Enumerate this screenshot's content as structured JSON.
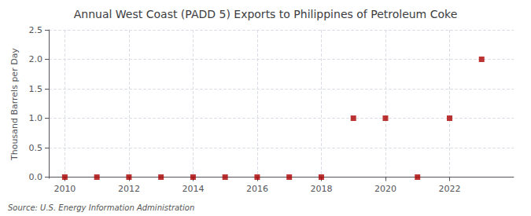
{
  "chart_data": {
    "type": "scatter",
    "title": "Annual West Coast (PADD 5) Exports to Philippines of Petroleum Coke",
    "ylabel": "Thousand Barrels per Day",
    "annotation": "Source: U.S. Energy Information Administration",
    "x": [
      2010,
      2011,
      2012,
      2013,
      2014,
      2015,
      2016,
      2017,
      2018,
      2019,
      2020,
      2021,
      2022,
      2023
    ],
    "values": [
      0.0,
      0.0,
      0.0,
      0.0,
      0.0,
      0.0,
      0.0,
      0.0,
      0.0,
      1.0,
      1.0,
      0.0,
      1.0,
      2.0
    ],
    "color": "#aa0000",
    "marker": "square",
    "xlim": [
      2009.5,
      2024.0
    ],
    "ylim": [
      -0.02,
      2.5
    ],
    "xticks": [
      2010,
      2012,
      2014,
      2016,
      2018,
      2020,
      2022
    ],
    "yticks": [
      {
        "value": 0.0,
        "label": "0.0"
      },
      0.5,
      {
        "value": 1.0,
        "label": "1.0"
      },
      1.5,
      {
        "value": 2.0,
        "label": "2.0"
      },
      2.5
    ],
    "grid": true
  }
}
